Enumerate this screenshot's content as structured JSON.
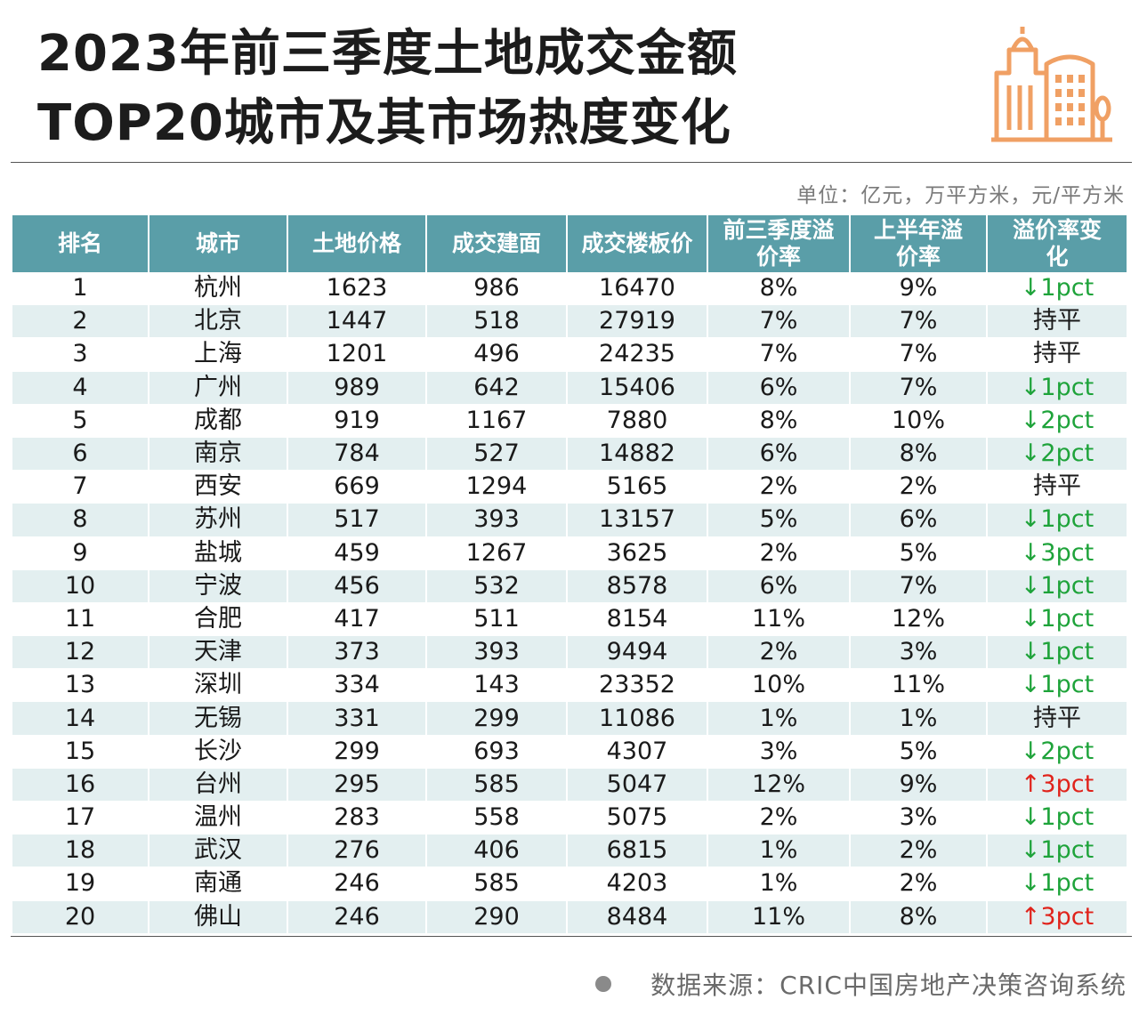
{
  "header": {
    "title_line1": "2023年前三季度土地成交金额",
    "title_line2": "TOP20城市及其市场热度变化",
    "unit_note": "单位：亿元，万平方米，元/平方米"
  },
  "colors": {
    "header_bg": "#5a9ea8",
    "stripe_bg": "#e3eff0",
    "down_color": "#1ea33a",
    "up_color": "#e0231b",
    "logo_color": "#f0a064"
  },
  "logo_icon": "building-icon",
  "table": {
    "columns": {
      "rank": "排名",
      "city": "城市",
      "land_price": "土地价格",
      "area": "成交建面",
      "floor_price": "成交楼板价",
      "q3_premium_l1": "前三季度溢",
      "q3_premium_l2": "价率",
      "h1_premium_l1": "上半年溢",
      "h1_premium_l2": "价率",
      "change_l1": "溢价率变",
      "change_l2": "化"
    },
    "rows": [
      {
        "rank": "1",
        "city": "杭州",
        "land_price": "1623",
        "area": "986",
        "floor_price": "16470",
        "q3": "8%",
        "h1": "9%",
        "change": "↓1pct",
        "dir": "down"
      },
      {
        "rank": "2",
        "city": "北京",
        "land_price": "1447",
        "area": "518",
        "floor_price": "27919",
        "q3": "7%",
        "h1": "7%",
        "change": "持平",
        "dir": "flat"
      },
      {
        "rank": "3",
        "city": "上海",
        "land_price": "1201",
        "area": "496",
        "floor_price": "24235",
        "q3": "7%",
        "h1": "7%",
        "change": "持平",
        "dir": "flat"
      },
      {
        "rank": "4",
        "city": "广州",
        "land_price": "989",
        "area": "642",
        "floor_price": "15406",
        "q3": "6%",
        "h1": "7%",
        "change": "↓1pct",
        "dir": "down"
      },
      {
        "rank": "5",
        "city": "成都",
        "land_price": "919",
        "area": "1167",
        "floor_price": "7880",
        "q3": "8%",
        "h1": "10%",
        "change": "↓2pct",
        "dir": "down"
      },
      {
        "rank": "6",
        "city": "南京",
        "land_price": "784",
        "area": "527",
        "floor_price": "14882",
        "q3": "6%",
        "h1": "8%",
        "change": "↓2pct",
        "dir": "down"
      },
      {
        "rank": "7",
        "city": "西安",
        "land_price": "669",
        "area": "1294",
        "floor_price": "5165",
        "q3": "2%",
        "h1": "2%",
        "change": "持平",
        "dir": "flat"
      },
      {
        "rank": "8",
        "city": "苏州",
        "land_price": "517",
        "area": "393",
        "floor_price": "13157",
        "q3": "5%",
        "h1": "6%",
        "change": "↓1pct",
        "dir": "down"
      },
      {
        "rank": "9",
        "city": "盐城",
        "land_price": "459",
        "area": "1267",
        "floor_price": "3625",
        "q3": "2%",
        "h1": "5%",
        "change": "↓3pct",
        "dir": "down"
      },
      {
        "rank": "10",
        "city": "宁波",
        "land_price": "456",
        "area": "532",
        "floor_price": "8578",
        "q3": "6%",
        "h1": "7%",
        "change": "↓1pct",
        "dir": "down"
      },
      {
        "rank": "11",
        "city": "合肥",
        "land_price": "417",
        "area": "511",
        "floor_price": "8154",
        "q3": "11%",
        "h1": "12%",
        "change": "↓1pct",
        "dir": "down"
      },
      {
        "rank": "12",
        "city": "天津",
        "land_price": "373",
        "area": "393",
        "floor_price": "9494",
        "q3": "2%",
        "h1": "3%",
        "change": "↓1pct",
        "dir": "down"
      },
      {
        "rank": "13",
        "city": "深圳",
        "land_price": "334",
        "area": "143",
        "floor_price": "23352",
        "q3": "10%",
        "h1": "11%",
        "change": "↓1pct",
        "dir": "down"
      },
      {
        "rank": "14",
        "city": "无锡",
        "land_price": "331",
        "area": "299",
        "floor_price": "11086",
        "q3": "1%",
        "h1": "1%",
        "change": "持平",
        "dir": "flat"
      },
      {
        "rank": "15",
        "city": "长沙",
        "land_price": "299",
        "area": "693",
        "floor_price": "4307",
        "q3": "3%",
        "h1": "5%",
        "change": "↓2pct",
        "dir": "down"
      },
      {
        "rank": "16",
        "city": "台州",
        "land_price": "295",
        "area": "585",
        "floor_price": "5047",
        "q3": "12%",
        "h1": "9%",
        "change": "↑3pct",
        "dir": "up"
      },
      {
        "rank": "17",
        "city": "温州",
        "land_price": "283",
        "area": "558",
        "floor_price": "5075",
        "q3": "2%",
        "h1": "3%",
        "change": "↓1pct",
        "dir": "down"
      },
      {
        "rank": "18",
        "city": "武汉",
        "land_price": "276",
        "area": "406",
        "floor_price": "6815",
        "q3": "1%",
        "h1": "2%",
        "change": "↓1pct",
        "dir": "down"
      },
      {
        "rank": "19",
        "city": "南通",
        "land_price": "246",
        "area": "585",
        "floor_price": "4203",
        "q3": "1%",
        "h1": "2%",
        "change": "↓1pct",
        "dir": "down"
      },
      {
        "rank": "20",
        "city": "佛山",
        "land_price": "246",
        "area": "290",
        "floor_price": "8484",
        "q3": "11%",
        "h1": "8%",
        "change": "↑3pct",
        "dir": "up"
      }
    ]
  },
  "footer": {
    "source": "数据来源：CRIC中国房地产决策咨询系统"
  }
}
